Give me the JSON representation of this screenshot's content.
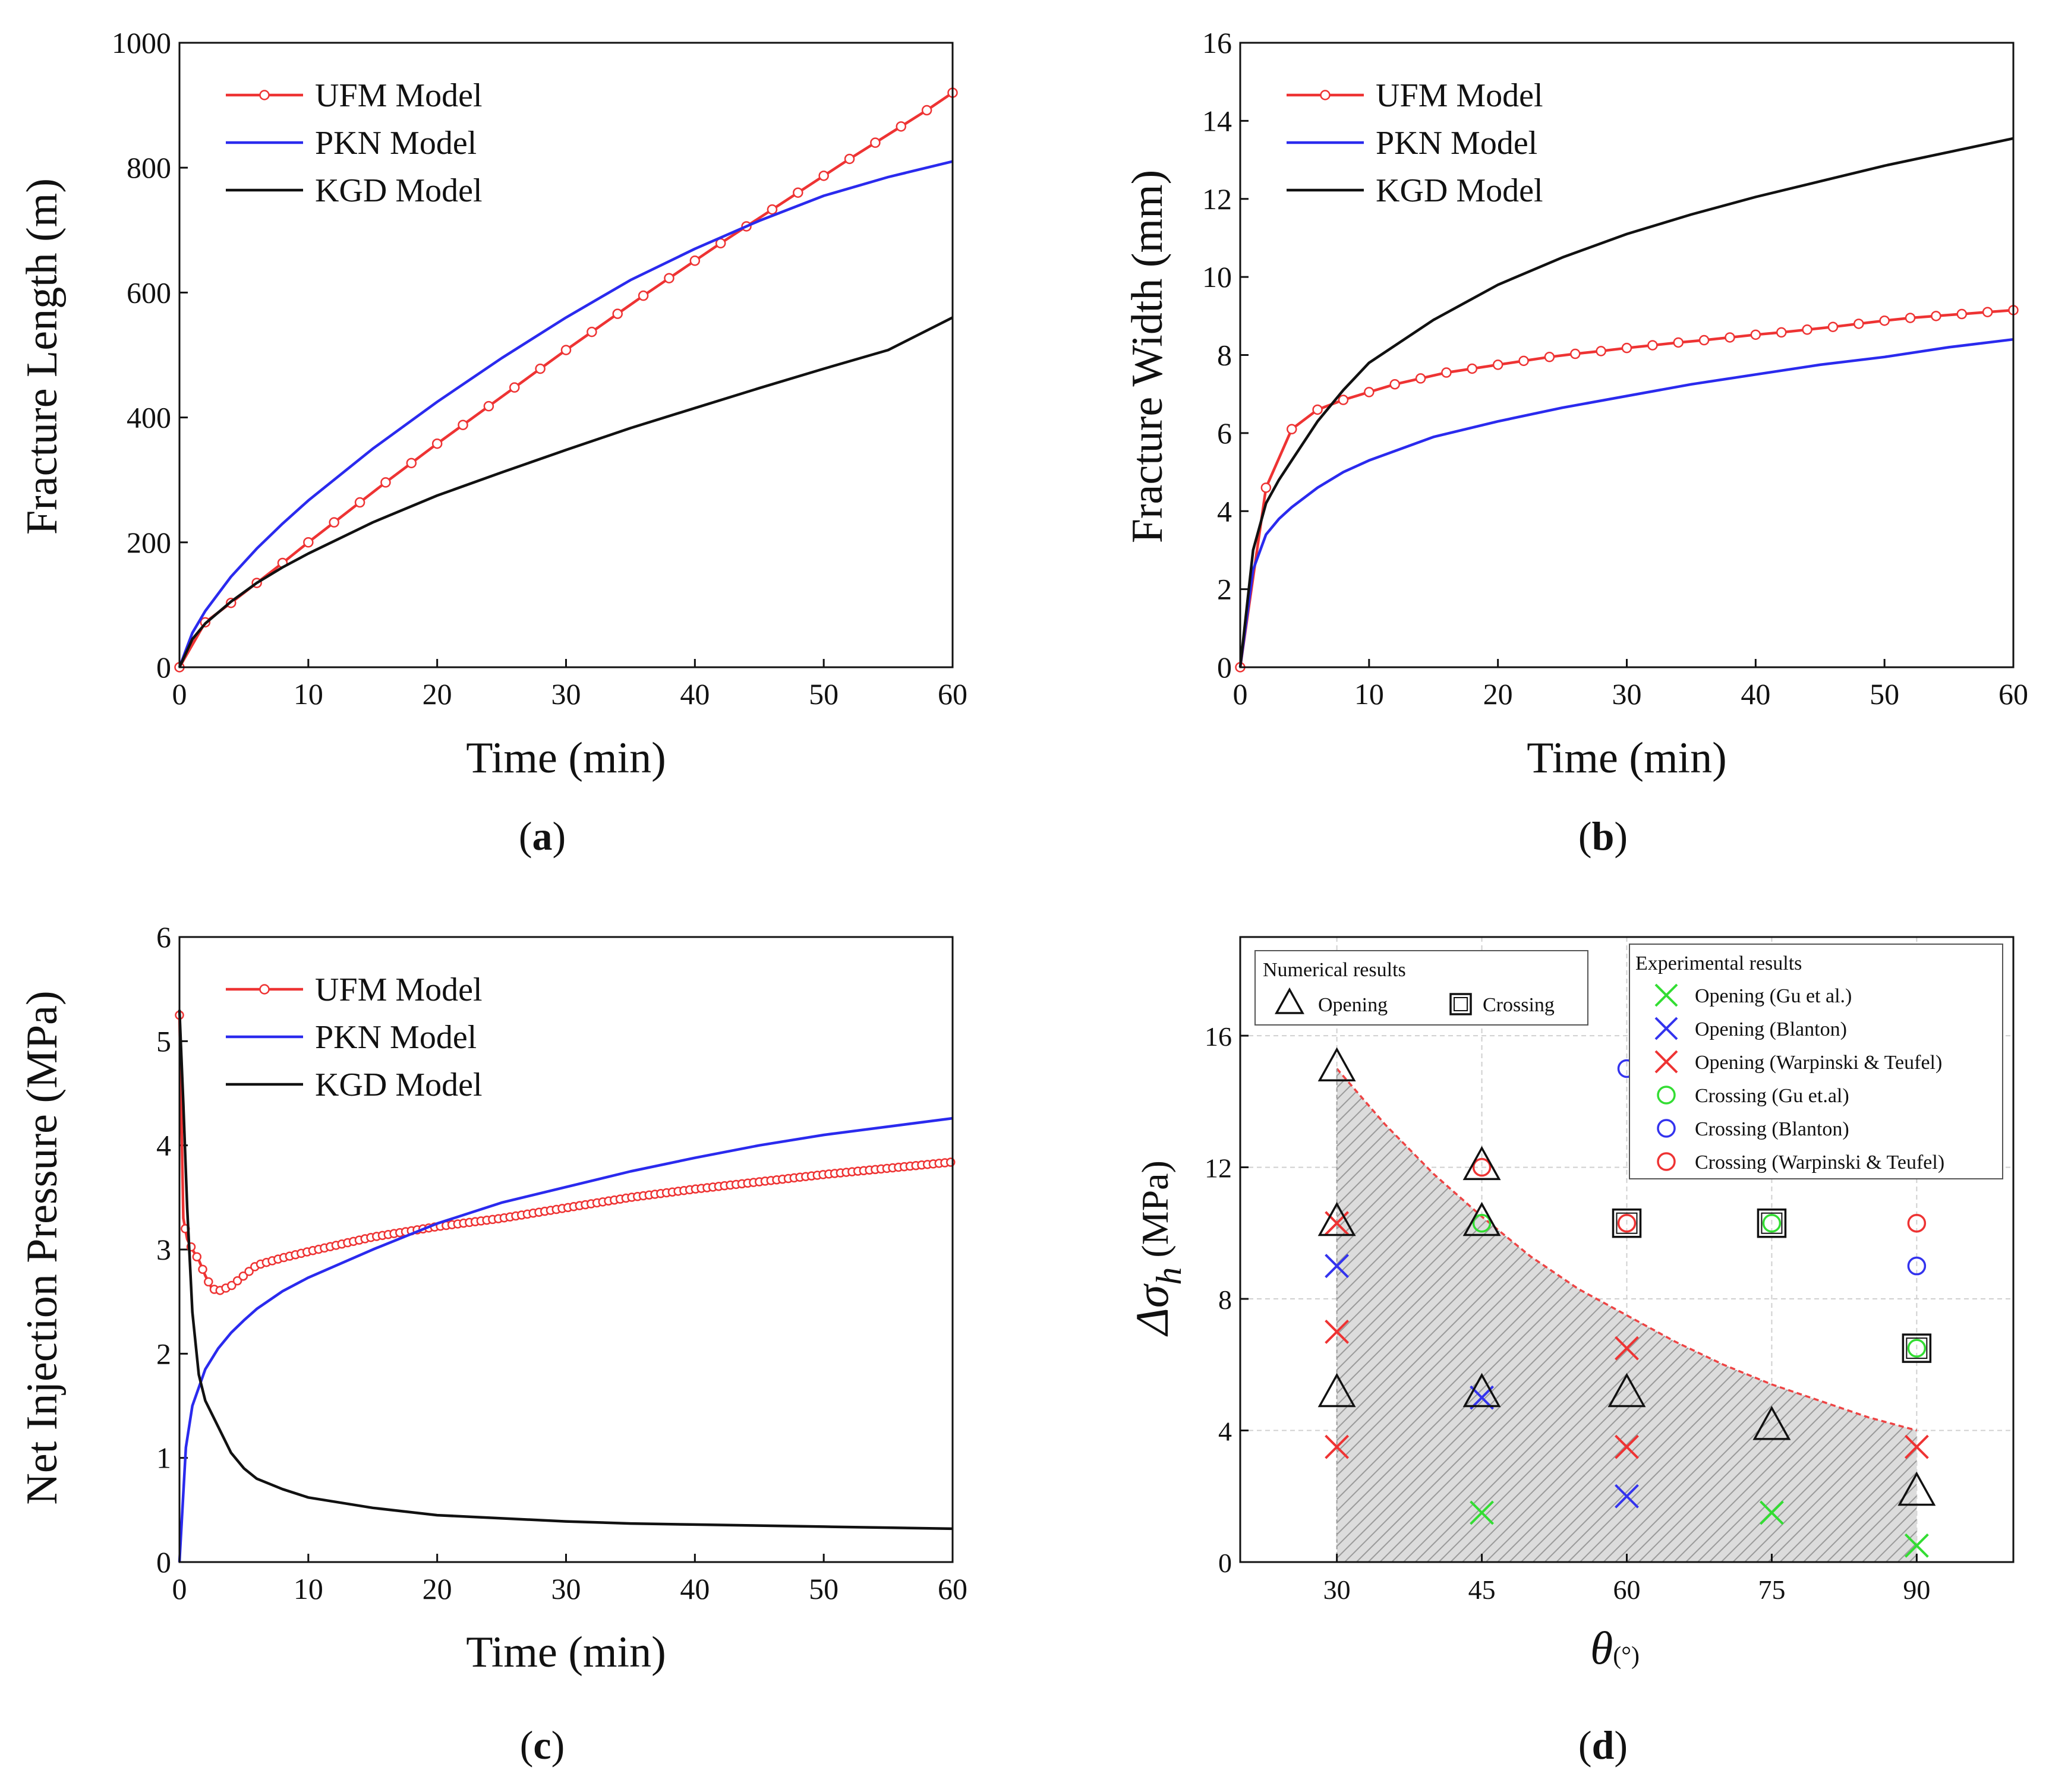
{
  "chart_data": [
    {
      "id": "a",
      "type": "line",
      "panel_label": "(a)",
      "xlabel": "Time (min)",
      "ylabel": "Fracture Length (m)",
      "xlim": [
        0,
        60
      ],
      "ylim": [
        0,
        1000
      ],
      "xticks": [
        0,
        10,
        20,
        30,
        40,
        50,
        60
      ],
      "yticks": [
        0,
        200,
        400,
        600,
        800,
        1000
      ],
      "legend": [
        "UFM Model",
        "PKN Model",
        "KGD Model"
      ],
      "series": [
        {
          "name": "UFM Model",
          "color": "#ee3333",
          "markers": true,
          "x": [
            0,
            2,
            4,
            6,
            8,
            10,
            12,
            14,
            16,
            18,
            20,
            22,
            24,
            26,
            28,
            30,
            32,
            34,
            36,
            38,
            40,
            42,
            44,
            46,
            48,
            50,
            52,
            54,
            56,
            58,
            60
          ],
          "y": [
            0,
            72,
            103,
            135,
            167,
            200,
            232,
            264,
            296,
            327,
            358,
            388,
            418,
            448,
            478,
            508,
            537,
            566,
            595,
            623,
            651,
            679,
            706,
            733,
            760,
            787,
            814,
            840,
            866,
            892,
            920
          ]
        },
        {
          "name": "PKN Model",
          "color": "#2a2aee",
          "markers": false,
          "x": [
            0,
            1,
            2,
            4,
            6,
            8,
            10,
            15,
            20,
            25,
            30,
            35,
            40,
            45,
            50,
            55,
            60
          ],
          "y": [
            0,
            55,
            90,
            145,
            190,
            230,
            267,
            350,
            425,
            495,
            560,
            620,
            670,
            715,
            755,
            785,
            810
          ]
        },
        {
          "name": "KGD Model",
          "color": "#111111",
          "markers": false,
          "x": [
            0,
            1,
            2,
            4,
            6,
            8,
            10,
            15,
            20,
            25,
            30,
            35,
            40,
            45,
            50,
            55,
            60
          ],
          "y": [
            0,
            45,
            70,
            105,
            135,
            160,
            182,
            232,
            275,
            312,
            348,
            383,
            415,
            447,
            478,
            508,
            560
          ]
        }
      ]
    },
    {
      "id": "b",
      "type": "line",
      "panel_label": "(b)",
      "xlabel": "Time (min)",
      "ylabel": "Fracture Width (mm)",
      "xlim": [
        0,
        60
      ],
      "ylim": [
        0,
        16
      ],
      "xticks": [
        0,
        10,
        20,
        30,
        40,
        50,
        60
      ],
      "yticks": [
        0,
        2,
        4,
        6,
        8,
        10,
        12,
        14,
        16
      ],
      "legend": [
        "UFM Model",
        "PKN Model",
        "KGD Model"
      ],
      "series": [
        {
          "name": "UFM Model",
          "color": "#ee3333",
          "markers": true,
          "x": [
            0,
            2,
            4,
            6,
            8,
            10,
            12,
            14,
            16,
            18,
            20,
            22,
            24,
            26,
            28,
            30,
            32,
            34,
            36,
            38,
            40,
            42,
            44,
            46,
            48,
            50,
            52,
            54,
            56,
            58,
            60
          ],
          "y": [
            0,
            4.6,
            6.1,
            6.6,
            6.85,
            7.05,
            7.25,
            7.4,
            7.55,
            7.65,
            7.75,
            7.85,
            7.95,
            8.03,
            8.1,
            8.18,
            8.25,
            8.32,
            8.38,
            8.45,
            8.52,
            8.58,
            8.65,
            8.72,
            8.8,
            8.88,
            8.95,
            9.0,
            9.05,
            9.1,
            9.15
          ]
        },
        {
          "name": "PKN Model",
          "color": "#2a2aee",
          "markers": false,
          "x": [
            0,
            1,
            2,
            3,
            4,
            6,
            8,
            10,
            15,
            20,
            25,
            30,
            35,
            40,
            45,
            50,
            55,
            60
          ],
          "y": [
            0,
            2.5,
            3.4,
            3.8,
            4.1,
            4.6,
            5.0,
            5.3,
            5.9,
            6.3,
            6.65,
            6.95,
            7.25,
            7.5,
            7.75,
            7.95,
            8.2,
            8.4
          ]
        },
        {
          "name": "KGD Model",
          "color": "#111111",
          "markers": false,
          "x": [
            0,
            1,
            2,
            3,
            4,
            6,
            8,
            10,
            15,
            20,
            25,
            30,
            35,
            40,
            45,
            50,
            55,
            60
          ],
          "y": [
            0,
            3.0,
            4.2,
            4.8,
            5.3,
            6.3,
            7.1,
            7.8,
            8.9,
            9.8,
            10.5,
            11.1,
            11.6,
            12.05,
            12.45,
            12.85,
            13.2,
            13.55
          ]
        }
      ]
    },
    {
      "id": "c",
      "type": "line",
      "panel_label": "(c)",
      "xlabel": "Time (min)",
      "ylabel": "Net Injection Pressure (MPa)",
      "xlim": [
        0,
        60
      ],
      "ylim": [
        0,
        6
      ],
      "xticks": [
        0,
        10,
        20,
        30,
        40,
        50,
        60
      ],
      "yticks": [
        0,
        1,
        2,
        3,
        4,
        5,
        6
      ],
      "legend": [
        "UFM Model",
        "PKN Model",
        "KGD Model"
      ],
      "series": [
        {
          "name": "UFM Model",
          "color": "#ee3333",
          "markers": true,
          "dense": true,
          "x": [
            0,
            0.3,
            0.6,
            1,
            1.5,
            2,
            2.5,
            3,
            4,
            5,
            6,
            8,
            10,
            15,
            20,
            25,
            30,
            35,
            40,
            45,
            50,
            55,
            60
          ],
          "y": [
            5.25,
            3.3,
            3.1,
            3.0,
            2.9,
            2.75,
            2.63,
            2.6,
            2.65,
            2.75,
            2.85,
            2.92,
            2.98,
            3.12,
            3.22,
            3.3,
            3.4,
            3.5,
            3.58,
            3.65,
            3.72,
            3.78,
            3.84
          ]
        },
        {
          "name": "PKN Model",
          "color": "#2a2aee",
          "markers": false,
          "x": [
            0,
            0.5,
            1,
            2,
            3,
            4,
            5,
            6,
            8,
            10,
            15,
            20,
            25,
            30,
            35,
            40,
            45,
            50,
            55,
            60
          ],
          "y": [
            0,
            1.1,
            1.5,
            1.85,
            2.05,
            2.2,
            2.32,
            2.43,
            2.6,
            2.73,
            3.0,
            3.25,
            3.45,
            3.6,
            3.75,
            3.88,
            4.0,
            4.1,
            4.18,
            4.26
          ]
        },
        {
          "name": "KGD Model",
          "color": "#111111",
          "markers": false,
          "x": [
            0,
            0.3,
            0.6,
            1,
            1.5,
            2,
            3,
            4,
            5,
            6,
            8,
            10,
            15,
            20,
            25,
            30,
            35,
            40,
            45,
            50,
            55,
            60
          ],
          "y": [
            5.3,
            4.4,
            3.4,
            2.4,
            1.8,
            1.55,
            1.3,
            1.05,
            0.9,
            0.8,
            0.7,
            0.62,
            0.52,
            0.45,
            0.42,
            0.39,
            0.37,
            0.36,
            0.35,
            0.34,
            0.33,
            0.32
          ]
        }
      ]
    },
    {
      "id": "d",
      "type": "scatter",
      "panel_label": "(d)",
      "xlabel": "θ",
      "xlabel_unit": "(°)",
      "ylabel_main": "Δσ",
      "ylabel_sub": "h",
      "ylabel_unit": "(MPa)",
      "xlim": [
        20,
        100
      ],
      "ylim": [
        0,
        19
      ],
      "xticks": [
        30,
        45,
        60,
        75,
        90
      ],
      "yticks": [
        0,
        4,
        8,
        12,
        16
      ],
      "grid": true,
      "boundary": {
        "color": "#ee4444",
        "x": [
          30,
          35,
          40,
          45,
          50,
          55,
          60,
          65,
          70,
          75,
          80,
          85,
          90
        ],
        "y": [
          15,
          13.3,
          11.8,
          10.5,
          9.3,
          8.3,
          7.5,
          6.7,
          6.0,
          5.4,
          4.9,
          4.4,
          4.0
        ]
      },
      "numerical_legend": {
        "title": "Numerical results",
        "opening": "Opening",
        "crossing": "Crossing"
      },
      "experimental_legend": {
        "title": "Experimental results",
        "entries": [
          {
            "label": "Opening (Gu et al.)",
            "marker": "x",
            "color": "#33dd33"
          },
          {
            "label": "Opening (Blanton)",
            "marker": "x",
            "color": "#3333ee"
          },
          {
            "label": "Opening (Warpinski & Teufel)",
            "marker": "x",
            "color": "#ee3333"
          },
          {
            "label": "Crossing (Gu et.al)",
            "marker": "o",
            "color": "#33dd33"
          },
          {
            "label": "Crossing (Blanton)",
            "marker": "o",
            "color": "#3333ee"
          },
          {
            "label": "Crossing (Warpinski & Teufel)",
            "marker": "o",
            "color": "#ee3333"
          }
        ]
      },
      "numerical_points": [
        {
          "x": 30,
          "y": 15,
          "marker": "triangle"
        },
        {
          "x": 30,
          "y": 10.3,
          "marker": "triangle"
        },
        {
          "x": 30,
          "y": 5.1,
          "marker": "triangle"
        },
        {
          "x": 45,
          "y": 12,
          "marker": "triangle"
        },
        {
          "x": 45,
          "y": 10.3,
          "marker": "triangle"
        },
        {
          "x": 45,
          "y": 5.1,
          "marker": "triangle"
        },
        {
          "x": 60,
          "y": 5.1,
          "marker": "triangle"
        },
        {
          "x": 75,
          "y": 4.1,
          "marker": "triangle"
        },
        {
          "x": 90,
          "y": 2.1,
          "marker": "triangle"
        },
        {
          "x": 60,
          "y": 10.3,
          "marker": "square"
        },
        {
          "x": 75,
          "y": 10.3,
          "marker": "square"
        },
        {
          "x": 90,
          "y": 6.5,
          "marker": "square"
        }
      ],
      "experimental_points": [
        {
          "x": 45,
          "y": 1.5,
          "marker": "x",
          "color": "#33dd33"
        },
        {
          "x": 75,
          "y": 1.5,
          "marker": "x",
          "color": "#33dd33"
        },
        {
          "x": 90,
          "y": 0.5,
          "marker": "x",
          "color": "#33dd33"
        },
        {
          "x": 30,
          "y": 9.0,
          "marker": "x",
          "color": "#3333ee"
        },
        {
          "x": 45,
          "y": 5.0,
          "marker": "x",
          "color": "#3333ee"
        },
        {
          "x": 60,
          "y": 2.0,
          "marker": "x",
          "color": "#3333ee"
        },
        {
          "x": 30,
          "y": 10.3,
          "marker": "x",
          "color": "#ee3333"
        },
        {
          "x": 30,
          "y": 7.0,
          "marker": "x",
          "color": "#ee3333"
        },
        {
          "x": 30,
          "y": 3.5,
          "marker": "x",
          "color": "#ee3333"
        },
        {
          "x": 60,
          "y": 6.5,
          "marker": "x",
          "color": "#ee3333"
        },
        {
          "x": 60,
          "y": 3.5,
          "marker": "x",
          "color": "#ee3333"
        },
        {
          "x": 90,
          "y": 3.5,
          "marker": "x",
          "color": "#ee3333"
        },
        {
          "x": 45,
          "y": 10.3,
          "marker": "o",
          "color": "#33dd33"
        },
        {
          "x": 75,
          "y": 10.3,
          "marker": "o",
          "color": "#33dd33"
        },
        {
          "x": 90,
          "y": 6.5,
          "marker": "o",
          "color": "#33dd33"
        },
        {
          "x": 60,
          "y": 15,
          "marker": "o",
          "color": "#3333ee"
        },
        {
          "x": 90,
          "y": 9.0,
          "marker": "o",
          "color": "#3333ee"
        },
        {
          "x": 45,
          "y": 12,
          "marker": "o",
          "color": "#ee3333"
        },
        {
          "x": 60,
          "y": 10.3,
          "marker": "o",
          "color": "#ee3333"
        },
        {
          "x": 90,
          "y": 10.3,
          "marker": "o",
          "color": "#ee3333"
        }
      ]
    }
  ]
}
